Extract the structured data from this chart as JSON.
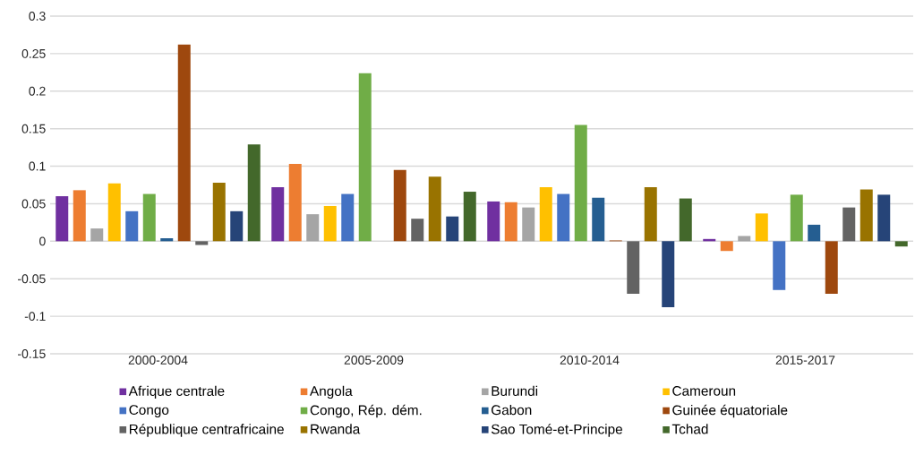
{
  "chart_data": {
    "type": "bar",
    "categories": [
      "2000-2004",
      "2005-2009",
      "2010-2014",
      "2015-2017"
    ],
    "series": [
      {
        "name": "Afrique centrale",
        "color": "#7030a0",
        "values": [
          0.06,
          0.072,
          0.053,
          0.003
        ]
      },
      {
        "name": "Angola",
        "color": "#ed7d31",
        "values": [
          0.068,
          0.103,
          0.052,
          -0.013
        ]
      },
      {
        "name": "Burundi",
        "color": "#a5a5a5",
        "values": [
          0.017,
          0.036,
          0.045,
          0.007
        ]
      },
      {
        "name": "Cameroun",
        "color": "#ffc000",
        "values": [
          0.077,
          0.047,
          0.072,
          0.037
        ]
      },
      {
        "name": "Congo",
        "color": "#4472c4",
        "values": [
          0.04,
          0.063,
          0.063,
          -0.065
        ]
      },
      {
        "name": "Congo, Rép. dém.",
        "color": "#70ad47",
        "values": [
          0.063,
          0.224,
          0.155,
          0.062
        ]
      },
      {
        "name": "Gabon",
        "color": "#255e91",
        "values": [
          0.004,
          0,
          0.058,
          0.022
        ]
      },
      {
        "name": "Guinée équatoriale",
        "color": "#9e480e",
        "values": [
          0.262,
          0.095,
          0.001,
          -0.07
        ]
      },
      {
        "name": "République centrafricaine",
        "color": "#636363",
        "values": [
          -0.005,
          0.03,
          -0.07,
          0.045
        ]
      },
      {
        "name": "Rwanda",
        "color": "#997300",
        "values": [
          0.078,
          0.086,
          0.072,
          0.069
        ]
      },
      {
        "name": "Sao Tomé-et-Principe",
        "color": "#264478",
        "values": [
          0.04,
          0.033,
          -0.088,
          0.062
        ]
      },
      {
        "name": "Tchad",
        "color": "#43682b",
        "values": [
          0.129,
          0.066,
          0.057,
          -0.007
        ]
      }
    ],
    "ylim": [
      -0.15,
      0.3
    ],
    "yticks": [
      -0.15,
      -0.1,
      -0.05,
      0,
      0.05,
      0.1,
      0.15,
      0.2,
      0.25,
      0.3
    ],
    "grid": "y",
    "legend": "bottom"
  }
}
